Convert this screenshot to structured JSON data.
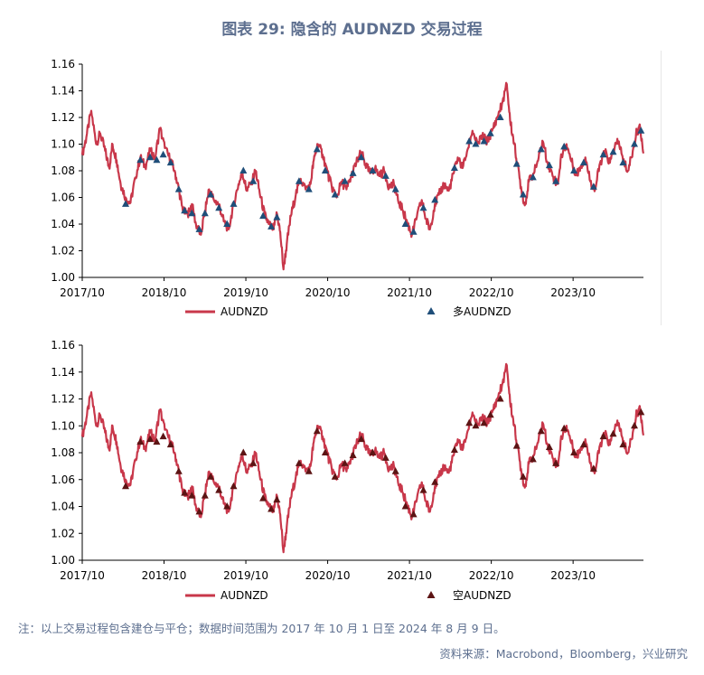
{
  "header": {
    "title": "图表 29: 隐含的 AUDNZD 交易过程"
  },
  "footer": {
    "note": "注：以上交易过程包含建仓与平仓；数据时间范围为 2017 年 10 月 1 日至 2024 年 8 月 9 日。",
    "source": "资料来源：Macrobond，Bloomberg，兴业研究"
  },
  "colors": {
    "line": "#c8374a",
    "long_marker": "#1f4e79",
    "short_marker": "#5c1414"
  },
  "chart_data": [
    {
      "type": "line",
      "title": "",
      "ylim": [
        1.0,
        1.16
      ],
      "yticks": [
        "1.00",
        "1.02",
        "1.04",
        "1.06",
        "1.08",
        "1.10",
        "1.12",
        "1.14",
        "1.16"
      ],
      "xticks": [
        "2017/10",
        "2018/10",
        "2019/10",
        "2020/10",
        "2021/10",
        "2022/10",
        "2023/10"
      ],
      "x_range": [
        "2017/10/01",
        "2024/08/09"
      ],
      "series": [
        {
          "name": "AUDNZD",
          "kind": "line",
          "color": "#c8374a"
        },
        {
          "name": "多AUDNZD",
          "kind": "marker",
          "color": "#1f4e79"
        }
      ],
      "legend": {
        "position": "bottom",
        "items": [
          "AUDNZD",
          "多AUDNZD"
        ]
      }
    },
    {
      "type": "line",
      "title": "",
      "ylim": [
        1.0,
        1.16
      ],
      "yticks": [
        "1.00",
        "1.02",
        "1.04",
        "1.06",
        "1.08",
        "1.10",
        "1.12",
        "1.14",
        "1.16"
      ],
      "xticks": [
        "2017/10",
        "2018/10",
        "2019/10",
        "2020/10",
        "2021/10",
        "2022/10",
        "2023/10"
      ],
      "x_range": [
        "2017/10/01",
        "2024/08/09"
      ],
      "series": [
        {
          "name": "AUDNZD",
          "kind": "line",
          "color": "#c8374a"
        },
        {
          "name": "空AUDNZD",
          "kind": "marker",
          "color": "#5c1414"
        }
      ],
      "legend": {
        "position": "bottom",
        "items": [
          "AUDNZD",
          "空AUDNZD"
        ]
      }
    }
  ],
  "audnzd_path": [
    [
      2017.75,
      1.092
    ],
    [
      2017.8,
      1.105
    ],
    [
      2017.86,
      1.125
    ],
    [
      2017.92,
      1.1
    ],
    [
      2017.97,
      1.108
    ],
    [
      2018.03,
      1.095
    ],
    [
      2018.08,
      1.082
    ],
    [
      2018.12,
      1.1
    ],
    [
      2018.17,
      1.088
    ],
    [
      2018.22,
      1.07
    ],
    [
      2018.28,
      1.06
    ],
    [
      2018.34,
      1.056
    ],
    [
      2018.4,
      1.075
    ],
    [
      2018.46,
      1.09
    ],
    [
      2018.52,
      1.083
    ],
    [
      2018.58,
      1.095
    ],
    [
      2018.64,
      1.09
    ],
    [
      2018.7,
      1.112
    ],
    [
      2018.76,
      1.097
    ],
    [
      2018.83,
      1.088
    ],
    [
      2018.88,
      1.08
    ],
    [
      2018.93,
      1.066
    ],
    [
      2018.98,
      1.05
    ],
    [
      2019.04,
      1.047
    ],
    [
      2019.09,
      1.055
    ],
    [
      2019.14,
      1.04
    ],
    [
      2019.2,
      1.032
    ],
    [
      2019.25,
      1.05
    ],
    [
      2019.3,
      1.066
    ],
    [
      2019.36,
      1.058
    ],
    [
      2019.42,
      1.055
    ],
    [
      2019.48,
      1.042
    ],
    [
      2019.54,
      1.036
    ],
    [
      2019.6,
      1.055
    ],
    [
      2019.66,
      1.07
    ],
    [
      2019.71,
      1.078
    ],
    [
      2019.76,
      1.065
    ],
    [
      2019.82,
      1.072
    ],
    [
      2019.87,
      1.08
    ],
    [
      2019.92,
      1.063
    ],
    [
      2019.98,
      1.047
    ],
    [
      2020.03,
      1.04
    ],
    [
      2020.09,
      1.036
    ],
    [
      2020.13,
      1.048
    ],
    [
      2020.17,
      1.034
    ],
    [
      2020.21,
      1.006
    ],
    [
      2020.25,
      1.025
    ],
    [
      2020.3,
      1.046
    ],
    [
      2020.36,
      1.062
    ],
    [
      2020.42,
      1.074
    ],
    [
      2020.48,
      1.066
    ],
    [
      2020.54,
      1.07
    ],
    [
      2020.58,
      1.088
    ],
    [
      2020.63,
      1.1
    ],
    [
      2020.69,
      1.092
    ],
    [
      2020.75,
      1.078
    ],
    [
      2020.8,
      1.068
    ],
    [
      2020.86,
      1.06
    ],
    [
      2020.92,
      1.072
    ],
    [
      2020.98,
      1.066
    ],
    [
      2021.04,
      1.076
    ],
    [
      2021.1,
      1.086
    ],
    [
      2021.16,
      1.094
    ],
    [
      2021.21,
      1.085
    ],
    [
      2021.27,
      1.078
    ],
    [
      2021.33,
      1.082
    ],
    [
      2021.38,
      1.076
    ],
    [
      2021.44,
      1.08
    ],
    [
      2021.5,
      1.068
    ],
    [
      2021.56,
      1.07
    ],
    [
      2021.61,
      1.058
    ],
    [
      2021.67,
      1.05
    ],
    [
      2021.73,
      1.04
    ],
    [
      2021.78,
      1.032
    ],
    [
      2021.84,
      1.045
    ],
    [
      2021.9,
      1.058
    ],
    [
      2021.95,
      1.044
    ],
    [
      2022.0,
      1.036
    ],
    [
      2022.06,
      1.055
    ],
    [
      2022.11,
      1.062
    ],
    [
      2022.17,
      1.07
    ],
    [
      2022.23,
      1.065
    ],
    [
      2022.29,
      1.078
    ],
    [
      2022.34,
      1.09
    ],
    [
      2022.4,
      1.082
    ],
    [
      2022.46,
      1.096
    ],
    [
      2022.52,
      1.11
    ],
    [
      2022.58,
      1.1
    ],
    [
      2022.64,
      1.106
    ],
    [
      2022.7,
      1.102
    ],
    [
      2022.76,
      1.11
    ],
    [
      2022.82,
      1.12
    ],
    [
      2022.88,
      1.13
    ],
    [
      2022.94,
      1.145
    ],
    [
      2022.98,
      1.118
    ],
    [
      2023.03,
      1.1
    ],
    [
      2023.07,
      1.085
    ],
    [
      2023.12,
      1.065
    ],
    [
      2023.16,
      1.054
    ],
    [
      2023.21,
      1.072
    ],
    [
      2023.27,
      1.078
    ],
    [
      2023.33,
      1.09
    ],
    [
      2023.38,
      1.102
    ],
    [
      2023.44,
      1.086
    ],
    [
      2023.5,
      1.076
    ],
    [
      2023.56,
      1.07
    ],
    [
      2023.61,
      1.092
    ],
    [
      2023.67,
      1.1
    ],
    [
      2023.73,
      1.087
    ],
    [
      2023.79,
      1.077
    ],
    [
      2023.84,
      1.083
    ],
    [
      2023.9,
      1.09
    ],
    [
      2023.96,
      1.072
    ],
    [
      2024.02,
      1.066
    ],
    [
      2024.08,
      1.086
    ],
    [
      2024.14,
      1.094
    ],
    [
      2024.2,
      1.086
    ],
    [
      2024.26,
      1.098
    ],
    [
      2024.31,
      1.102
    ],
    [
      2024.36,
      1.088
    ],
    [
      2024.42,
      1.08
    ],
    [
      2024.48,
      1.095
    ],
    [
      2024.53,
      1.11
    ],
    [
      2024.57,
      1.112
    ],
    [
      2024.61,
      1.093
    ]
  ],
  "long_markers": [
    [
      2018.28,
      1.055
    ],
    [
      2018.46,
      1.088
    ],
    [
      2018.58,
      1.09
    ],
    [
      2018.66,
      1.088
    ],
    [
      2018.74,
      1.092
    ],
    [
      2018.83,
      1.086
    ],
    [
      2018.93,
      1.066
    ],
    [
      2019.0,
      1.05
    ],
    [
      2019.09,
      1.048
    ],
    [
      2019.18,
      1.036
    ],
    [
      2019.25,
      1.048
    ],
    [
      2019.32,
      1.062
    ],
    [
      2019.42,
      1.052
    ],
    [
      2019.52,
      1.04
    ],
    [
      2019.6,
      1.055
    ],
    [
      2019.72,
      1.08
    ],
    [
      2019.84,
      1.072
    ],
    [
      2019.96,
      1.046
    ],
    [
      2020.06,
      1.038
    ],
    [
      2020.13,
      1.045
    ],
    [
      2020.4,
      1.072
    ],
    [
      2020.52,
      1.066
    ],
    [
      2020.62,
      1.096
    ],
    [
      2020.72,
      1.08
    ],
    [
      2020.84,
      1.062
    ],
    [
      2020.96,
      1.072
    ],
    [
      2021.06,
      1.078
    ],
    [
      2021.16,
      1.09
    ],
    [
      2021.3,
      1.08
    ],
    [
      2021.46,
      1.076
    ],
    [
      2021.58,
      1.066
    ],
    [
      2021.7,
      1.04
    ],
    [
      2021.8,
      1.034
    ],
    [
      2021.92,
      1.052
    ],
    [
      2022.06,
      1.058
    ],
    [
      2022.3,
      1.082
    ],
    [
      2022.48,
      1.102
    ],
    [
      2022.56,
      1.1
    ],
    [
      2022.66,
      1.102
    ],
    [
      2022.74,
      1.108
    ],
    [
      2022.86,
      1.12
    ],
    [
      2023.06,
      1.085
    ],
    [
      2023.14,
      1.062
    ],
    [
      2023.26,
      1.075
    ],
    [
      2023.36,
      1.096
    ],
    [
      2023.46,
      1.084
    ],
    [
      2023.54,
      1.072
    ],
    [
      2023.64,
      1.098
    ],
    [
      2023.76,
      1.08
    ],
    [
      2023.88,
      1.086
    ],
    [
      2024.0,
      1.068
    ],
    [
      2024.12,
      1.092
    ],
    [
      2024.24,
      1.094
    ],
    [
      2024.36,
      1.086
    ],
    [
      2024.5,
      1.1
    ],
    [
      2024.58,
      1.11
    ]
  ],
  "short_markers": [
    [
      2018.28,
      1.055
    ],
    [
      2018.46,
      1.088
    ],
    [
      2018.58,
      1.09
    ],
    [
      2018.66,
      1.088
    ],
    [
      2018.74,
      1.092
    ],
    [
      2018.83,
      1.086
    ],
    [
      2018.93,
      1.066
    ],
    [
      2019.0,
      1.05
    ],
    [
      2019.09,
      1.048
    ],
    [
      2019.18,
      1.036
    ],
    [
      2019.25,
      1.048
    ],
    [
      2019.32,
      1.062
    ],
    [
      2019.42,
      1.052
    ],
    [
      2019.52,
      1.04
    ],
    [
      2019.6,
      1.055
    ],
    [
      2019.72,
      1.08
    ],
    [
      2019.84,
      1.072
    ],
    [
      2019.96,
      1.046
    ],
    [
      2020.06,
      1.038
    ],
    [
      2020.13,
      1.045
    ],
    [
      2020.4,
      1.072
    ],
    [
      2020.52,
      1.066
    ],
    [
      2020.62,
      1.096
    ],
    [
      2020.72,
      1.08
    ],
    [
      2020.84,
      1.062
    ],
    [
      2020.96,
      1.072
    ],
    [
      2021.06,
      1.078
    ],
    [
      2021.16,
      1.09
    ],
    [
      2021.3,
      1.08
    ],
    [
      2021.46,
      1.076
    ],
    [
      2021.58,
      1.066
    ],
    [
      2021.7,
      1.04
    ],
    [
      2021.8,
      1.034
    ],
    [
      2021.92,
      1.052
    ],
    [
      2022.06,
      1.058
    ],
    [
      2022.3,
      1.082
    ],
    [
      2022.48,
      1.102
    ],
    [
      2022.56,
      1.1
    ],
    [
      2022.66,
      1.102
    ],
    [
      2022.74,
      1.108
    ],
    [
      2022.86,
      1.12
    ],
    [
      2023.06,
      1.085
    ],
    [
      2023.14,
      1.062
    ],
    [
      2023.26,
      1.075
    ],
    [
      2023.36,
      1.096
    ],
    [
      2023.46,
      1.084
    ],
    [
      2023.54,
      1.072
    ],
    [
      2023.64,
      1.098
    ],
    [
      2023.76,
      1.08
    ],
    [
      2023.88,
      1.086
    ],
    [
      2024.0,
      1.068
    ],
    [
      2024.12,
      1.092
    ],
    [
      2024.24,
      1.094
    ],
    [
      2024.36,
      1.086
    ],
    [
      2024.5,
      1.1
    ],
    [
      2024.58,
      1.11
    ]
  ]
}
